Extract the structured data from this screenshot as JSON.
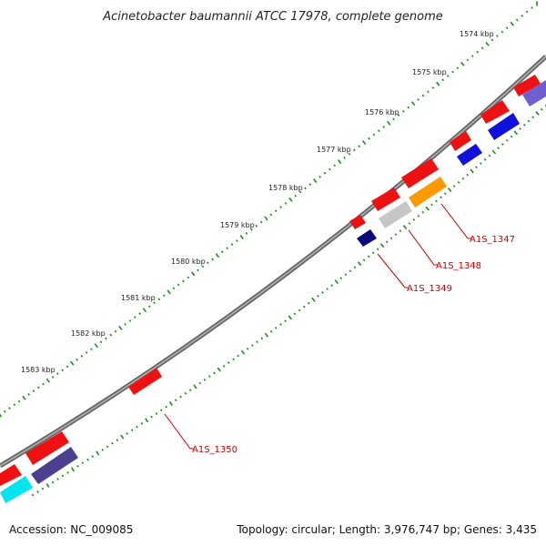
{
  "map": {
    "title": "Acinetobacter baumannii ATCC 17978, complete genome",
    "accession": "Accession: NC_009085",
    "summary": "Topology: circular; Length: 3,976,747 bp; Genes: 3,435"
  },
  "ticks": [
    {
      "label": "1574 kbp"
    },
    {
      "label": "1575 kbp"
    },
    {
      "label": "1576 kbp"
    },
    {
      "label": "1577 kbp"
    },
    {
      "label": "1578 kbp"
    },
    {
      "label": "1579 kbp"
    },
    {
      "label": "1580 kbp"
    },
    {
      "label": "1581 kbp"
    },
    {
      "label": "1582 kbp"
    },
    {
      "label": "1583 kbp"
    }
  ],
  "genes": [
    {
      "label": "A1S_1347"
    },
    {
      "label": "A1S_1348"
    },
    {
      "label": "A1S_1349"
    },
    {
      "label": "A1S_1350"
    }
  ],
  "colors": {
    "backbone": "#8a8a8a",
    "tick_dots": "#1f8a1f",
    "gene_forward": "#ee1111",
    "gene_reverse_blue": "#1111dd",
    "gene_reverse_navy": "#0a0a7a",
    "gene_reverse_slate": "#4b3f8f",
    "gene_reverse_purple": "#6f5fd0",
    "gene_orange": "#ff9900",
    "gene_gray": "#c6c6c6",
    "gene_cyan": "#00e5ee",
    "label_red": "#cc0000"
  }
}
